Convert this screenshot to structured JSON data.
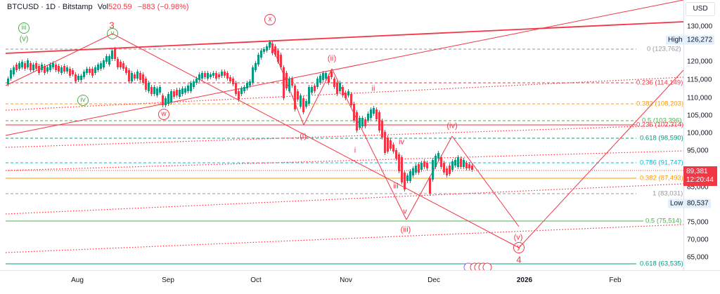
{
  "header": {
    "symbol": "BTCUSD",
    "sep1": " · ",
    "interval": "1D",
    "sep2": " · ",
    "exchange": "Bitstamp",
    "vol_label": "Vol",
    "vol_value": "520.59",
    "change": "−883 (−0.98%)"
  },
  "price_axis": {
    "currency": "USD",
    "ticks": [
      "130,000",
      "125,000",
      "120,000",
      "115,000",
      "110,000",
      "105,000",
      "100,000",
      "95,000",
      "90,000",
      "85,000",
      "75,000",
      "70,000",
      "65,000"
    ],
    "high_label": "High",
    "high_value": "126,272",
    "low_label": "Low",
    "low_value": "80,537",
    "last_price": "89,381",
    "countdown": "12:20:44"
  },
  "time_axis": {
    "labels": [
      "Aug",
      "Sep",
      "Oct",
      "Nov",
      "Dec",
      "2026",
      "Feb"
    ]
  },
  "fib_levels": [
    {
      "text": "0 (123,762)",
      "color": "#9598a1"
    },
    {
      "text": "0.236 (114,149)",
      "color": "#f23645"
    },
    {
      "text": "0.382 (108,203)",
      "color": "#ff9800"
    },
    {
      "text": "0.5 (103,396)",
      "color": "#4caf50"
    },
    {
      "text": "0.236 (102,314)",
      "color": "#f23645"
    },
    {
      "text": "0.618 (98,590)",
      "color": "#089981"
    },
    {
      "text": "0.786 (91,747)",
      "color": "#00bcd4"
    },
    {
      "text": "0.382 (87,493)",
      "color": "#ff9800"
    },
    {
      "text": "1 (83,031)",
      "color": "#9598a1"
    },
    {
      "text": "0.5 (75,514)",
      "color": "#4caf50"
    },
    {
      "text": "0.618 (63,535)",
      "color": "#089981"
    }
  ],
  "wave_labels": {
    "iii_green": "iii",
    "v_green_paren": "(v)",
    "iv_green": "iv",
    "three": "3",
    "v_green_circ": "v",
    "w": "w",
    "x": "x",
    "ii_paren": "(ii)",
    "ii": "ii",
    "i_paren": "(i)",
    "i": "i",
    "iv": "iv",
    "iii": "iii",
    "v": "v",
    "iii_paren": "(iii)",
    "iv_paren": "(iv)",
    "v_paren": "(v)",
    "y": "y",
    "four": "4"
  },
  "colors": {
    "up": "#089981",
    "down": "#f23645",
    "wave_red": "#f23645",
    "wave_green": "#4caf50"
  },
  "chart_data": {
    "type": "candlestick",
    "title": "BTCUSD · 1D · Bitstamp",
    "xlabel": "",
    "ylabel": "USD",
    "ylim": [
      61000,
      134000
    ],
    "x_ticks": [
      "Aug",
      "Sep",
      "Oct",
      "Nov",
      "Dec",
      "2026",
      "Feb"
    ],
    "y_ticks": [
      65000,
      70000,
      75000,
      80000,
      85000,
      90000,
      95000,
      100000,
      105000,
      110000,
      115000,
      120000,
      125000,
      130000
    ],
    "high": 126272,
    "low": 80537,
    "last": 89381,
    "change": -883,
    "change_pct": -0.98,
    "volume": 520.59,
    "fibonacci": [
      {
        "ratio": 0,
        "price": 123762
      },
      {
        "ratio": 0.236,
        "price": 114149
      },
      {
        "ratio": 0.382,
        "price": 108203
      },
      {
        "ratio": 0.5,
        "price": 103396
      },
      {
        "ratio": 0.236,
        "price": 102314
      },
      {
        "ratio": 0.618,
        "price": 98590
      },
      {
        "ratio": 0.786,
        "price": 91747
      },
      {
        "ratio": 0.382,
        "price": 87493
      },
      {
        "ratio": 1,
        "price": 83031
      },
      {
        "ratio": 0.5,
        "price": 75514
      },
      {
        "ratio": 0.618,
        "price": 63535
      }
    ],
    "elliott_wave_labels": [
      "iii",
      "(v)",
      "iv",
      "3",
      "v",
      "w",
      "x",
      "(i)",
      "(ii)",
      "i",
      "ii",
      "iii",
      "iv",
      "v",
      "(iii)",
      "(iv)",
      "(v)",
      "y",
      "4"
    ]
  }
}
